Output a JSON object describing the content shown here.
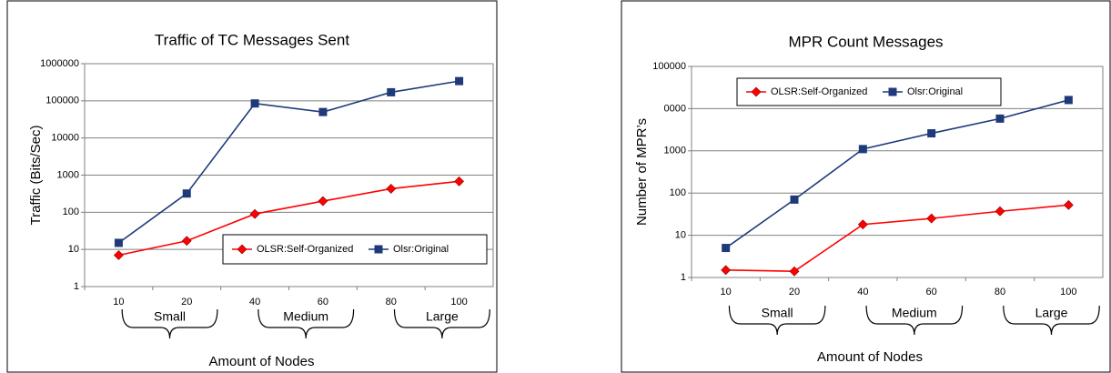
{
  "chart_data": [
    {
      "type": "line",
      "title": "Traffic of TC Messages Sent",
      "y_label": "Traffic (Bits/Sec)",
      "x_label": "Amount of Nodes",
      "categories": [
        "10",
        "20",
        "40",
        "60",
        "80",
        "100"
      ],
      "groups": [
        "Small",
        "Medium",
        "Large"
      ],
      "series": [
        {
          "name": "OLSR:Self-Organized",
          "color": "#ff0000",
          "marker": "diamond",
          "values": [
            7,
            17,
            90,
            200,
            430,
            680
          ]
        },
        {
          "name": "Olsr:Original",
          "color": "#1f3a7a",
          "marker": "square",
          "values": [
            15,
            320,
            85000,
            50000,
            170000,
            340000
          ]
        }
      ],
      "log_scale": true,
      "ylim": [
        1,
        1000000
      ],
      "yticks": [
        1,
        10,
        100,
        1000,
        10000,
        100000,
        1000000
      ],
      "grid": true,
      "legend": "lower right"
    },
    {
      "type": "line",
      "title": "MPR Count Messages",
      "y_label": "Number of MPR’s",
      "x_label": "Amount of Nodes",
      "categories": [
        "10",
        "20",
        "40",
        "60",
        "80",
        "100"
      ],
      "groups": [
        "Small",
        "Medium",
        "Large"
      ],
      "series": [
        {
          "name": "OLSR:Self-Organized",
          "color": "#ff0000",
          "marker": "diamond",
          "values": [
            1.5,
            1.4,
            18,
            25,
            37,
            52
          ]
        },
        {
          "name": "Olsr:Original",
          "color": "#1f3a7a",
          "marker": "square",
          "values": [
            5,
            70,
            1100,
            2600,
            5800,
            16000
          ]
        }
      ],
      "log_scale": true,
      "ylim": [
        1,
        100000
      ],
      "yticks": [
        1,
        10,
        100,
        1000,
        {
          "value": 10000,
          "label": "0000"
        },
        100000
      ],
      "grid": true,
      "legend": "upper left"
    }
  ]
}
